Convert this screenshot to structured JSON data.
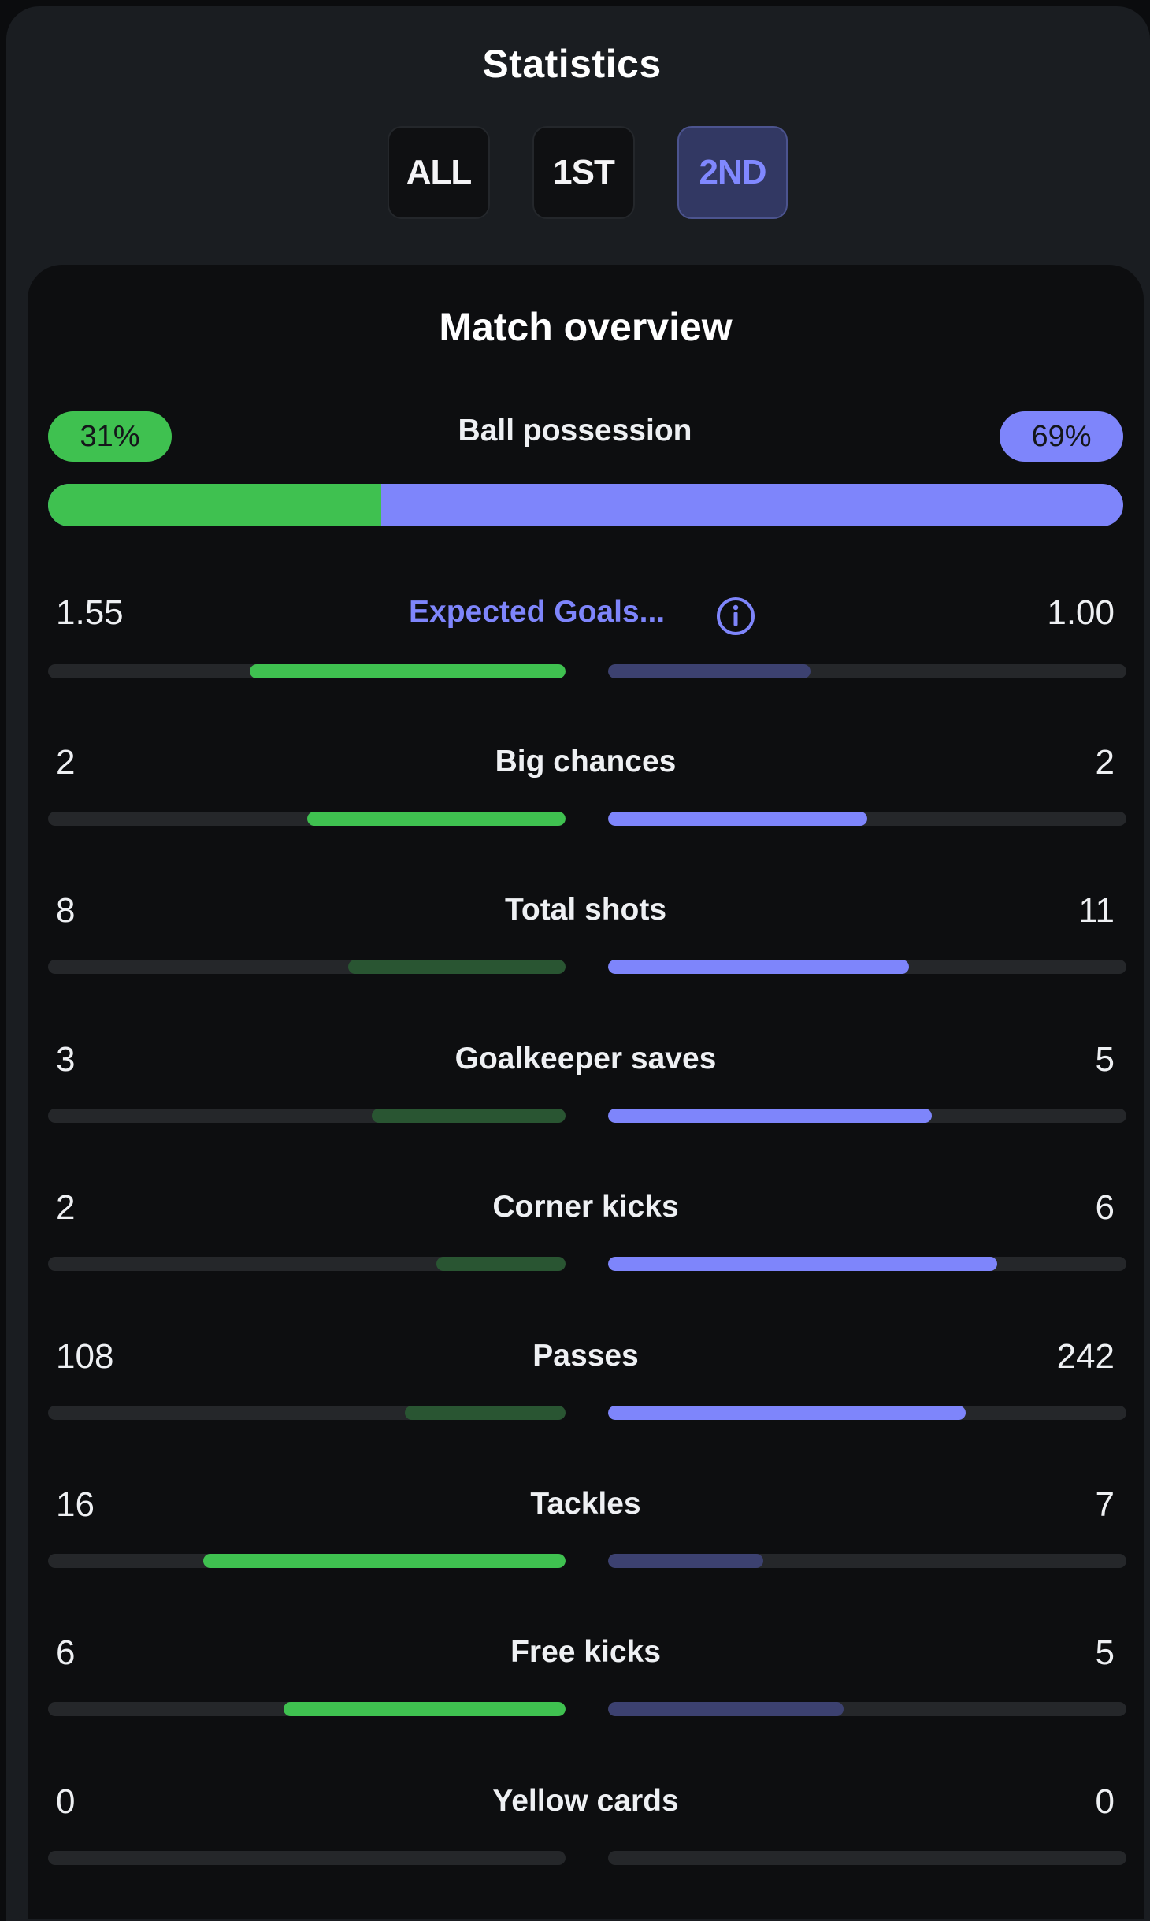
{
  "header": {
    "title": "Statistics",
    "tabs": [
      {
        "label": "ALL",
        "active": false
      },
      {
        "label": "1ST",
        "active": false
      },
      {
        "label": "2ND",
        "active": true
      }
    ]
  },
  "overview": {
    "title": "Match overview",
    "possession": {
      "label": "Ball possession",
      "home": "31%",
      "away": "69%",
      "home_fraction": 0.31
    },
    "expected_goals": {
      "label": "Expected Goals...",
      "home": "1.55",
      "away": "1.00",
      "home_fill": 0.61,
      "away_fill": 0.39,
      "home_color": "#3fc150",
      "away_color": "#3c4170"
    },
    "stats": [
      {
        "label": "Big chances",
        "home": "2",
        "away": "2",
        "home_fill": 0.5,
        "away_fill": 0.5,
        "home_color": "#3fc150",
        "away_color": "#7e85fb"
      },
      {
        "label": "Total shots",
        "home": "8",
        "away": "11",
        "home_fill": 0.42,
        "away_fill": 0.58,
        "home_color": "#295532",
        "away_color": "#7e85fb"
      },
      {
        "label": "Goalkeeper saves",
        "home": "3",
        "away": "5",
        "home_fill": 0.375,
        "away_fill": 0.625,
        "home_color": "#295532",
        "away_color": "#7e85fb"
      },
      {
        "label": "Corner kicks",
        "home": "2",
        "away": "6",
        "home_fill": 0.25,
        "away_fill": 0.75,
        "home_color": "#295532",
        "away_color": "#7e85fb"
      },
      {
        "label": "Passes",
        "home": "108",
        "away": "242",
        "home_fill": 0.31,
        "away_fill": 0.69,
        "home_color": "#295532",
        "away_color": "#7e85fb"
      },
      {
        "label": "Tackles",
        "home": "16",
        "away": "7",
        "home_fill": 0.7,
        "away_fill": 0.3,
        "home_color": "#3fc150",
        "away_color": "#3c4170"
      },
      {
        "label": "Free kicks",
        "home": "6",
        "away": "5",
        "home_fill": 0.545,
        "away_fill": 0.455,
        "home_color": "#3fc150",
        "away_color": "#3c4170"
      },
      {
        "label": "Yellow cards",
        "home": "0",
        "away": "0",
        "home_fill": 0,
        "away_fill": 0,
        "home_color": "#3fc150",
        "away_color": "#7e85fb"
      }
    ]
  },
  "icons": {
    "info": "info-circle-icon"
  }
}
